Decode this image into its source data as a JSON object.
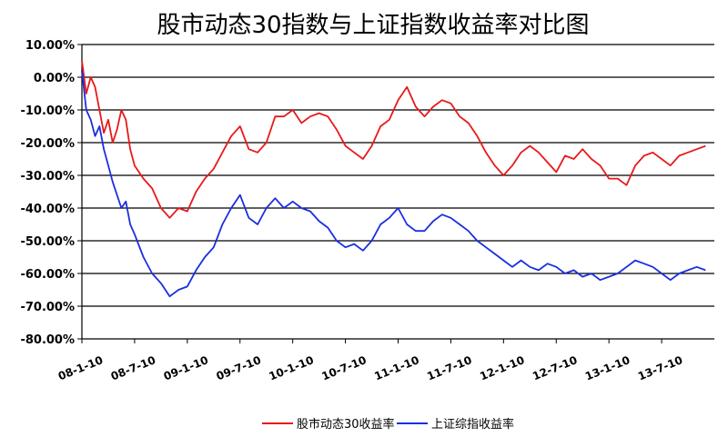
{
  "chart_data": {
    "type": "line",
    "title": "股市动态30指数与上证指数收益率对比图",
    "xlabel": "",
    "ylabel": "",
    "ylim": [
      -80,
      10
    ],
    "y_ticks": [
      "10.00%",
      "0.00%",
      "-10.00%",
      "-20.00%",
      "-30.00%",
      "-40.00%",
      "-50.00%",
      "-60.00%",
      "-70.00%",
      "-80.00%"
    ],
    "y_tick_values": [
      10,
      0,
      -10,
      -20,
      -30,
      -40,
      -50,
      -60,
      -70,
      -80
    ],
    "x_ticks": [
      "08-1-10",
      "08-7-10",
      "09-1-10",
      "09-7-10",
      "10-1-10",
      "10-7-10",
      "11-1-10",
      "11-7-10",
      "12-1-10",
      "12-7-10",
      "13-1-10",
      "13-7-10"
    ],
    "x_tick_positions": [
      0,
      6,
      12,
      18,
      24,
      30,
      36,
      42,
      48,
      54,
      60,
      66
    ],
    "x_units": "months since 2008-01-10",
    "xlim": [
      0,
      72
    ],
    "grid": true,
    "legend": "bottom",
    "series": [
      {
        "name": "股市动态30收益率",
        "color": "#e8191a",
        "x": [
          0,
          0.5,
          1,
          1.5,
          2,
          2.5,
          3,
          3.5,
          4,
          4.5,
          5,
          5.5,
          6,
          7,
          8,
          9,
          10,
          11,
          12,
          13,
          14,
          15,
          16,
          17,
          18,
          19,
          20,
          21,
          22,
          23,
          24,
          25,
          26,
          27,
          28,
          29,
          30,
          31,
          32,
          33,
          34,
          35,
          36,
          37,
          38,
          39,
          40,
          41,
          42,
          43,
          44,
          45,
          46,
          47,
          48,
          49,
          50,
          51,
          52,
          53,
          54,
          55,
          56,
          57,
          58,
          59,
          60,
          61,
          62,
          63,
          64,
          65,
          66,
          67,
          68,
          69,
          70,
          71
        ],
        "values": [
          5,
          -5,
          0,
          -3,
          -10,
          -17,
          -13,
          -20,
          -16,
          -10,
          -13,
          -22,
          -27,
          -31,
          -34,
          -40,
          -43,
          -40,
          -41,
          -35,
          -31,
          -28,
          -23,
          -18,
          -15,
          -22,
          -23,
          -20,
          -12,
          -12,
          -10,
          -14,
          -12,
          -11,
          -12,
          -16,
          -21,
          -23,
          -25,
          -21,
          -15,
          -13,
          -7,
          -3,
          -9,
          -12,
          -9,
          -7,
          -8,
          -12,
          -14,
          -18,
          -23,
          -27,
          -30,
          -27,
          -23,
          -21,
          -23,
          -26,
          -29,
          -24,
          -25,
          -22,
          -25,
          -27,
          -31,
          -31,
          -33,
          -27,
          -24,
          -23,
          -25,
          -27,
          -24,
          -23,
          -22,
          -21
        ]
      },
      {
        "name": "上证综指收益率",
        "color": "#1a2ee0",
        "x": [
          0,
          0.5,
          1,
          1.5,
          2,
          2.5,
          3,
          3.5,
          4,
          4.5,
          5,
          5.5,
          6,
          7,
          8,
          9,
          10,
          11,
          12,
          13,
          14,
          15,
          16,
          17,
          18,
          19,
          20,
          21,
          22,
          23,
          24,
          25,
          26,
          27,
          28,
          29,
          30,
          31,
          32,
          33,
          34,
          35,
          36,
          37,
          38,
          39,
          40,
          41,
          42,
          43,
          44,
          45,
          46,
          47,
          48,
          49,
          50,
          51,
          52,
          53,
          54,
          55,
          56,
          57,
          58,
          59,
          60,
          61,
          62,
          63,
          64,
          65,
          66,
          67,
          68,
          69,
          70,
          71
        ],
        "values": [
          2,
          -10,
          -13,
          -18,
          -15,
          -22,
          -27,
          -32,
          -36,
          -40,
          -38,
          -45,
          -48,
          -55,
          -60,
          -63,
          -67,
          -65,
          -64,
          -59,
          -55,
          -52,
          -45,
          -40,
          -36,
          -43,
          -45,
          -40,
          -37,
          -40,
          -38,
          -40,
          -41,
          -44,
          -46,
          -50,
          -52,
          -51,
          -53,
          -50,
          -45,
          -43,
          -40,
          -45,
          -47,
          -47,
          -44,
          -42,
          -43,
          -45,
          -47,
          -50,
          -52,
          -54,
          -56,
          -58,
          -56,
          -58,
          -59,
          -57,
          -58,
          -60,
          -59,
          -61,
          -60,
          -62,
          -61,
          -60,
          -58,
          -56,
          -57,
          -58,
          -60,
          -62,
          -60,
          -59,
          -58,
          -59
        ]
      }
    ]
  }
}
